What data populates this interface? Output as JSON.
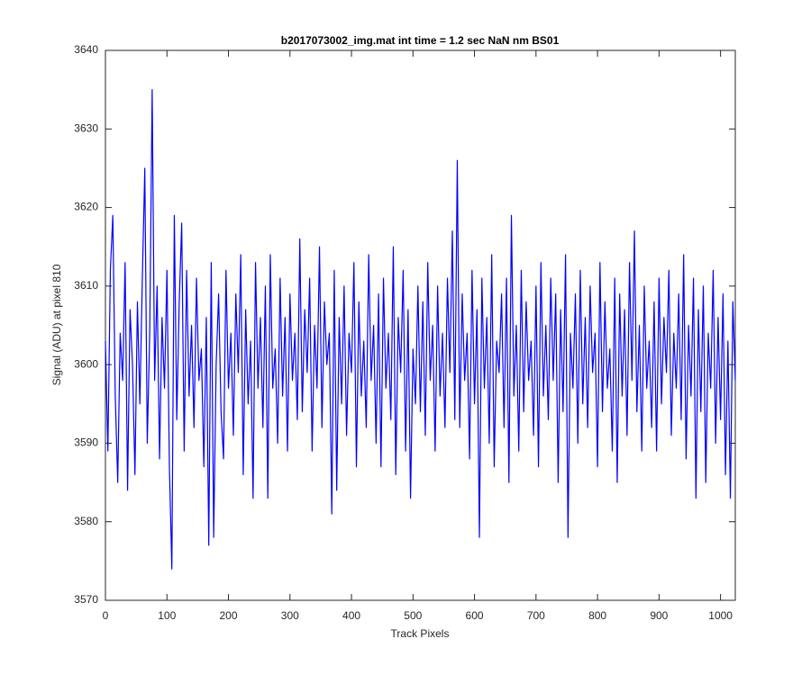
{
  "chart_data": {
    "type": "line",
    "title": "b2017073002_img.mat int time = 1.2 sec  NaN nm BS01",
    "xlabel": "Track Pixels",
    "ylabel": "Signal (ADU) at pixel 810",
    "xlim": [
      0,
      1024
    ],
    "ylim": [
      3570,
      3640
    ],
    "xticks": [
      0,
      100,
      200,
      300,
      400,
      500,
      600,
      700,
      800,
      900,
      1000
    ],
    "yticks": [
      3570,
      3580,
      3590,
      3600,
      3610,
      3620,
      3630,
      3640
    ],
    "grid": false,
    "x": [
      0,
      4,
      8,
      12,
      16,
      20,
      24,
      28,
      32,
      36,
      40,
      44,
      48,
      52,
      56,
      60,
      64,
      68,
      72,
      76,
      80,
      84,
      88,
      92,
      96,
      100,
      104,
      108,
      112,
      116,
      120,
      124,
      128,
      132,
      136,
      140,
      144,
      148,
      152,
      156,
      160,
      164,
      168,
      172,
      176,
      180,
      184,
      188,
      192,
      196,
      200,
      204,
      208,
      212,
      216,
      220,
      224,
      228,
      232,
      236,
      240,
      244,
      248,
      252,
      256,
      260,
      264,
      268,
      272,
      276,
      280,
      284,
      288,
      292,
      296,
      300,
      304,
      308,
      312,
      316,
      320,
      324,
      328,
      332,
      336,
      340,
      344,
      348,
      352,
      356,
      360,
      364,
      368,
      372,
      376,
      380,
      384,
      388,
      392,
      396,
      400,
      404,
      408,
      412,
      416,
      420,
      424,
      428,
      432,
      436,
      440,
      444,
      448,
      452,
      456,
      460,
      464,
      468,
      472,
      476,
      480,
      484,
      488,
      492,
      496,
      500,
      504,
      508,
      512,
      516,
      520,
      524,
      528,
      532,
      536,
      540,
      544,
      548,
      552,
      556,
      560,
      564,
      568,
      572,
      576,
      580,
      584,
      588,
      592,
      596,
      600,
      604,
      608,
      612,
      616,
      620,
      624,
      628,
      632,
      636,
      640,
      644,
      648,
      652,
      656,
      660,
      664,
      668,
      672,
      676,
      680,
      684,
      688,
      692,
      696,
      700,
      704,
      708,
      712,
      716,
      720,
      724,
      728,
      732,
      736,
      740,
      744,
      748,
      752,
      756,
      760,
      764,
      768,
      772,
      776,
      780,
      784,
      788,
      792,
      796,
      800,
      804,
      808,
      812,
      816,
      820,
      824,
      828,
      832,
      836,
      840,
      844,
      848,
      852,
      856,
      860,
      864,
      868,
      872,
      876,
      880,
      884,
      888,
      892,
      896,
      900,
      904,
      908,
      912,
      916,
      920,
      924,
      928,
      932,
      936,
      940,
      944,
      948,
      952,
      956,
      960,
      964,
      968,
      972,
      976,
      980,
      984,
      988,
      992,
      996,
      1000,
      1004,
      1008,
      1012,
      1016,
      1020,
      1024
    ],
    "series": [
      {
        "name": "signal",
        "color": "#0000ff",
        "values": [
          3603,
          3589,
          3612,
          3619,
          3596,
          3585,
          3604,
          3598,
          3613,
          3584,
          3607,
          3600,
          3586,
          3608,
          3595,
          3611,
          3625,
          3590,
          3604,
          3635,
          3598,
          3610,
          3588,
          3606,
          3597,
          3612,
          3587,
          3574,
          3619,
          3593,
          3608,
          3618,
          3589,
          3612,
          3596,
          3605,
          3592,
          3611,
          3598,
          3602,
          3587,
          3606,
          3577,
          3613,
          3578,
          3600,
          3609,
          3594,
          3588,
          3612,
          3597,
          3604,
          3591,
          3609,
          3599,
          3614,
          3586,
          3607,
          3595,
          3603,
          3583,
          3613,
          3597,
          3606,
          3592,
          3610,
          3583,
          3614,
          3597,
          3602,
          3590,
          3611,
          3596,
          3606,
          3589,
          3609,
          3598,
          3604,
          3593,
          3616,
          3594,
          3607,
          3599,
          3611,
          3589,
          3605,
          3597,
          3615,
          3592,
          3608,
          3600,
          3604,
          3581,
          3612,
          3584,
          3606,
          3595,
          3610,
          3591,
          3604,
          3599,
          3613,
          3587,
          3608,
          3596,
          3603,
          3592,
          3614,
          3598,
          3605,
          3590,
          3609,
          3587,
          3611,
          3597,
          3604,
          3593,
          3615,
          3586,
          3606,
          3599,
          3612,
          3589,
          3607,
          3583,
          3602,
          3595,
          3610,
          3594,
          3608,
          3591,
          3613,
          3598,
          3605,
          3589,
          3610,
          3596,
          3604,
          3592,
          3611,
          3599,
          3617,
          3593,
          3626,
          3592,
          3609,
          3598,
          3604,
          3588,
          3612,
          3595,
          3607,
          3578,
          3611,
          3597,
          3606,
          3590,
          3614,
          3587,
          3603,
          3599,
          3609,
          3592,
          3611,
          3585,
          3619,
          3596,
          3605,
          3589,
          3612,
          3594,
          3608,
          3598,
          3603,
          3591,
          3610,
          3587,
          3613,
          3596,
          3605,
          3593,
          3611,
          3598,
          3609,
          3585,
          3607,
          3594,
          3614,
          3578,
          3604,
          3597,
          3609,
          3590,
          3612,
          3595,
          3606,
          3592,
          3610,
          3599,
          3604,
          3587,
          3613,
          3594,
          3608,
          3597,
          3602,
          3589,
          3611,
          3585,
          3609,
          3596,
          3607,
          3591,
          3613,
          3598,
          3617,
          3594,
          3605,
          3589,
          3610,
          3597,
          3603,
          3592,
          3608,
          3589,
          3611,
          3595,
          3606,
          3599,
          3612,
          3591,
          3604,
          3597,
          3609,
          3593,
          3614,
          3588,
          3605,
          3596,
          3611,
          3583,
          3607,
          3594,
          3610,
          3585,
          3604,
          3597,
          3612,
          3590,
          3606,
          3593,
          3609,
          3586,
          3603,
          3583,
          3608,
          3598
        ]
      }
    ]
  }
}
